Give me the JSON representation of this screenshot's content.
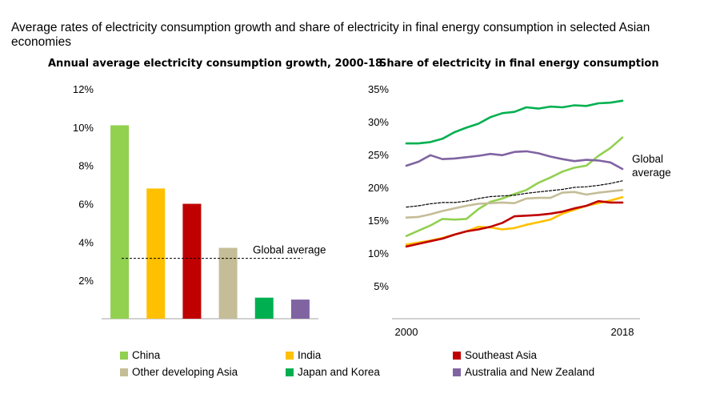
{
  "title": "Average rates of electricity consumption growth and share of electricity in final energy consumption in selected Asian economies",
  "legend": [
    {
      "label": "China",
      "color": "#92d050"
    },
    {
      "label": "India",
      "color": "#ffc000"
    },
    {
      "label": "Southeast Asia",
      "color": "#c00000"
    },
    {
      "label": "Other developing Asia",
      "color": "#c4bd97"
    },
    {
      "label": "Japan and Korea",
      "color": "#00b050"
    },
    {
      "label": "Australia and New Zealand",
      "color": "#8064a2"
    }
  ],
  "chart_data": [
    {
      "type": "bar",
      "title": "Annual average electricity consumption growth, 2000-18",
      "categories": [
        "China",
        "India",
        "Southeast Asia",
        "Other developing Asia",
        "Japan and Korea",
        "Australia and New Zealand"
      ],
      "values": [
        10.1,
        6.8,
        6.0,
        3.7,
        1.1,
        1.0
      ],
      "colors": [
        "#92d050",
        "#ffc000",
        "#c00000",
        "#c4bd97",
        "#00b050",
        "#8064a2"
      ],
      "ylim": [
        0,
        12
      ],
      "yticks": [
        "2%",
        "4%",
        "6%",
        "8%",
        "10%",
        "12%"
      ],
      "reference_line": {
        "label": "Global average",
        "value": 3.15
      },
      "grid": false
    },
    {
      "type": "line",
      "title": "Share of electricity in final energy consumption",
      "x": [
        2000,
        2001,
        2002,
        2003,
        2004,
        2005,
        2006,
        2007,
        2008,
        2009,
        2010,
        2011,
        2012,
        2013,
        2014,
        2015,
        2016,
        2017,
        2018
      ],
      "xticks": [
        "2000",
        "2018"
      ],
      "ylim": [
        0,
        35
      ],
      "yticks": [
        "5%",
        "10%",
        "15%",
        "20%",
        "25%",
        "30%",
        "35%"
      ],
      "annotation": "Global average",
      "grid": false,
      "series": [
        {
          "name": "Japan and Korea",
          "color": "#00b050",
          "dash": false,
          "values": [
            26.7,
            26.7,
            26.9,
            27.4,
            28.4,
            29.1,
            29.7,
            30.7,
            31.3,
            31.5,
            32.2,
            32.0,
            32.3,
            32.2,
            32.5,
            32.4,
            32.8,
            32.9,
            33.2
          ]
        },
        {
          "name": "China",
          "color": "#92d050",
          "dash": false,
          "values": [
            12.6,
            13.4,
            14.2,
            15.2,
            15.1,
            15.2,
            16.7,
            17.8,
            18.3,
            19.0,
            19.6,
            20.7,
            21.5,
            22.4,
            23.0,
            23.3,
            24.8,
            26.0,
            27.6
          ]
        },
        {
          "name": "Australia and New Zealand",
          "color": "#8064a2",
          "dash": false,
          "values": [
            23.3,
            23.9,
            24.9,
            24.3,
            24.4,
            24.6,
            24.8,
            25.1,
            24.9,
            25.4,
            25.5,
            25.2,
            24.7,
            24.3,
            24.0,
            24.2,
            24.1,
            23.8,
            22.8
          ]
        },
        {
          "name": "Global average",
          "color": "#000000",
          "dash": true,
          "values": [
            17.0,
            17.2,
            17.5,
            17.7,
            17.7,
            17.9,
            18.3,
            18.6,
            18.7,
            18.8,
            19.1,
            19.3,
            19.5,
            19.7,
            20.0,
            20.1,
            20.3,
            20.6,
            21.0
          ]
        },
        {
          "name": "Other developing Asia",
          "color": "#c4bd97",
          "dash": false,
          "values": [
            15.4,
            15.5,
            15.9,
            16.4,
            16.8,
            17.2,
            17.5,
            17.6,
            17.7,
            17.6,
            18.3,
            18.4,
            18.4,
            19.2,
            19.3,
            18.9,
            19.2,
            19.4,
            19.6
          ]
        },
        {
          "name": "India",
          "color": "#ffc000",
          "dash": false,
          "values": [
            11.3,
            11.6,
            11.9,
            12.3,
            12.8,
            13.3,
            14.0,
            13.9,
            13.6,
            13.8,
            14.3,
            14.7,
            15.1,
            16.0,
            16.6,
            17.2,
            17.6,
            18.0,
            18.5
          ]
        },
        {
          "name": "Southeast Asia",
          "color": "#c00000",
          "dash": false,
          "values": [
            11.0,
            11.4,
            11.8,
            12.2,
            12.8,
            13.3,
            13.6,
            14.0,
            14.6,
            15.6,
            15.7,
            15.8,
            16.0,
            16.3,
            16.8,
            17.2,
            17.9,
            17.7,
            17.7
          ]
        }
      ]
    }
  ]
}
